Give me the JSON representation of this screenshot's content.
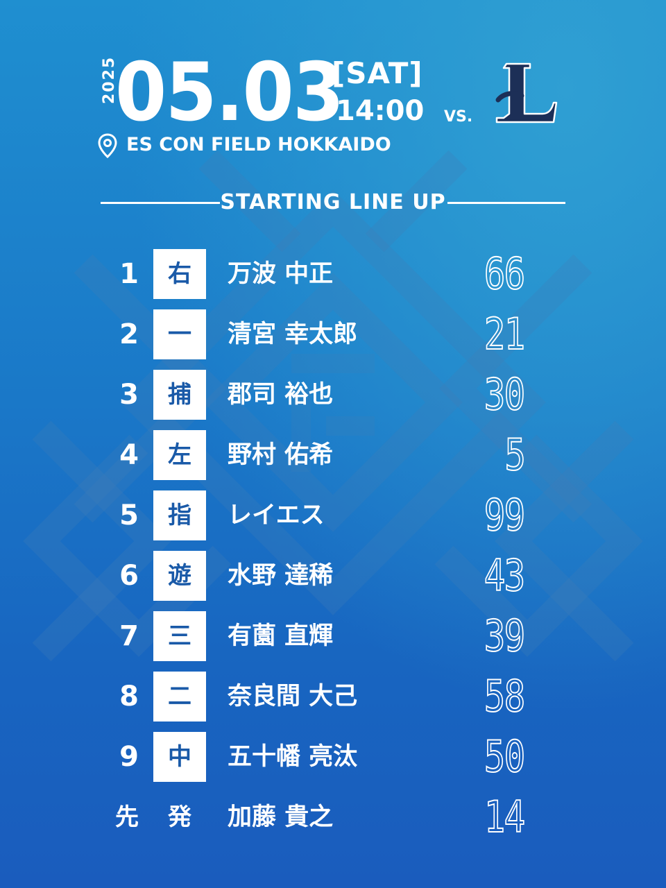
{
  "header": {
    "year": "2025",
    "date": "05.03",
    "weekday": "[SAT]",
    "time": "14:00",
    "vs": "VS.",
    "opponent_logo_letter": "L",
    "venue": "ES CON FIELD HOKKAIDO",
    "venue_icon": "map-pin-icon"
  },
  "section_title": "STARTING LINE UP",
  "lineup": [
    {
      "order": "1",
      "position": "右",
      "name": "万波 中正",
      "number": "66"
    },
    {
      "order": "2",
      "position": "一",
      "name": "清宮 幸太郎",
      "number": "21"
    },
    {
      "order": "3",
      "position": "捕",
      "name": "郡司 裕也",
      "number": "30"
    },
    {
      "order": "4",
      "position": "左",
      "name": "野村 佑希",
      "number": "5"
    },
    {
      "order": "5",
      "position": "指",
      "name": "レイエス",
      "number": "99"
    },
    {
      "order": "6",
      "position": "遊",
      "name": "水野 達稀",
      "number": "43"
    },
    {
      "order": "7",
      "position": "三",
      "name": "有薗 直輝",
      "number": "39"
    },
    {
      "order": "8",
      "position": "二",
      "name": "奈良間 大己",
      "number": "58"
    },
    {
      "order": "9",
      "position": "中",
      "name": "五十幡 亮汰",
      "number": "50"
    }
  ],
  "starting_pitcher": {
    "label_1": "先",
    "label_2": "発",
    "name": "加藤 貴之",
    "number": "14"
  },
  "colors": {
    "background_top": "#1f8fd0",
    "background_bottom": "#1a5cbd",
    "position_box": "#ffffff",
    "position_text": "#1a5aa8",
    "logo_navy": "#1c2f57"
  }
}
